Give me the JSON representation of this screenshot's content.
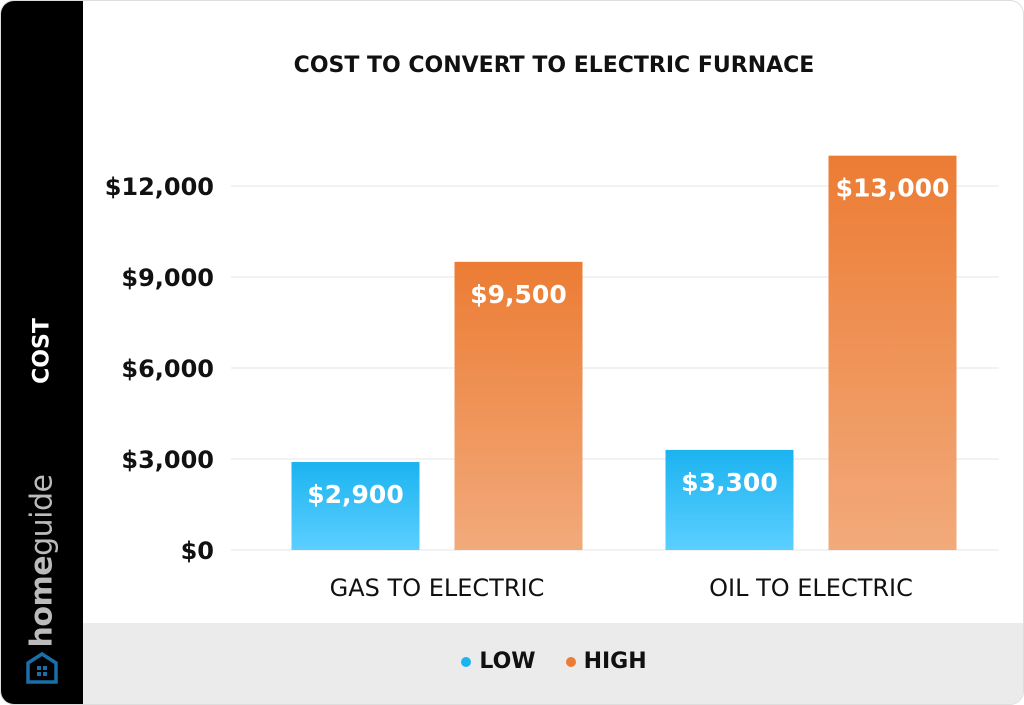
{
  "brand": {
    "logo_text_1": "home",
    "logo_text_2": "guide"
  },
  "chart_data": {
    "type": "bar",
    "title": "COST TO CONVERT TO ELECTRIC FURNACE",
    "xlabel": "",
    "ylabel": "COST",
    "categories": [
      "GAS TO ELECTRIC",
      "OIL TO ELECTRIC"
    ],
    "series": [
      {
        "name": "LOW",
        "values": [
          2900,
          3300
        ],
        "labels": [
          "$2,900",
          "$3,300"
        ],
        "color": "#1bb3f0",
        "color_end": "#5ccfff"
      },
      {
        "name": "HIGH",
        "values": [
          9500,
          13000
        ],
        "labels": [
          "$9,500",
          "$13,000"
        ],
        "color": "#ec7c34",
        "color_end": "#f2aa7b"
      }
    ],
    "ylim": [
      0,
      13000
    ],
    "yticks": [
      0,
      3000,
      6000,
      9000,
      12000
    ],
    "ytick_labels": [
      "$0",
      "$3,000",
      "$6,000",
      "$9,000",
      "$12,000"
    ],
    "grid": true,
    "legend_placement": "bottom"
  }
}
